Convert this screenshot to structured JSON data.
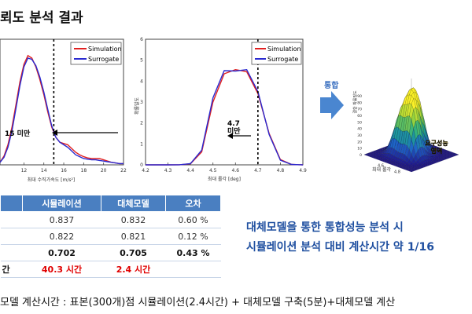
{
  "title": "뢰도 분석 결과",
  "integration_label": "통합",
  "chart_data": [
    {
      "type": "line",
      "series": [
        {
          "name": "Simulation",
          "color": "#e02020",
          "x": [
            9.6,
            10.0,
            10.4,
            10.8,
            11.2,
            11.6,
            12.0,
            12.4,
            12.8,
            13.2,
            13.6,
            14.0,
            14.4,
            14.8,
            15.2,
            15.6,
            16.0,
            16.4,
            16.8,
            17.2,
            17.6,
            18.0,
            18.4,
            18.8,
            19.2,
            19.6,
            20.0,
            20.4,
            20.8,
            21.2,
            21.6,
            22.0
          ],
          "y": [
            0.02,
            0.07,
            0.16,
            0.3,
            0.48,
            0.66,
            0.8,
            0.87,
            0.85,
            0.78,
            0.68,
            0.56,
            0.42,
            0.3,
            0.22,
            0.18,
            0.17,
            0.16,
            0.13,
            0.1,
            0.08,
            0.065,
            0.055,
            0.05,
            0.05,
            0.05,
            0.04,
            0.03,
            0.02,
            0.015,
            0.01,
            0.01
          ]
        },
        {
          "name": "Surrogate",
          "color": "#2a2ad0",
          "x": [
            9.6,
            10.0,
            10.4,
            10.8,
            11.2,
            11.6,
            12.0,
            12.4,
            12.8,
            13.2,
            13.6,
            14.0,
            14.4,
            14.8,
            15.2,
            15.6,
            16.0,
            16.4,
            16.8,
            17.2,
            17.6,
            18.0,
            18.4,
            18.8,
            19.2,
            19.6,
            20.0,
            20.4,
            20.8,
            21.2,
            21.6,
            22.0
          ],
          "y": [
            0.02,
            0.06,
            0.14,
            0.27,
            0.45,
            0.63,
            0.78,
            0.85,
            0.84,
            0.79,
            0.7,
            0.58,
            0.44,
            0.31,
            0.22,
            0.18,
            0.16,
            0.14,
            0.11,
            0.08,
            0.065,
            0.05,
            0.045,
            0.04,
            0.04,
            0.035,
            0.03,
            0.025,
            0.02,
            0.015,
            0.01,
            0.01
          ]
        }
      ],
      "xlim": [
        9.6,
        22
      ],
      "ylim": [
        0,
        1
      ],
      "xticks": [
        12,
        14,
        16,
        18,
        20,
        22
      ],
      "xlabel": "최대 수직가속도 [m/s²]",
      "threshold": 15,
      "annotation": "15 미만",
      "legend_position": "top-right",
      "grid": false
    },
    {
      "type": "line",
      "series": [
        {
          "name": "Simulation",
          "color": "#e02020",
          "x": [
            4.2,
            4.25,
            4.3,
            4.35,
            4.4,
            4.45,
            4.5,
            4.55,
            4.6,
            4.65,
            4.7,
            4.75,
            4.8,
            4.85,
            4.9
          ],
          "y": [
            0,
            0,
            0,
            0.002,
            0.05,
            0.62,
            3.0,
            4.35,
            4.55,
            4.45,
            3.4,
            1.5,
            0.25,
            0.02,
            0
          ]
        },
        {
          "name": "Surrogate",
          "color": "#2a2ad0",
          "x": [
            4.2,
            4.25,
            4.3,
            4.35,
            4.4,
            4.45,
            4.5,
            4.55,
            4.6,
            4.65,
            4.7,
            4.75,
            4.8,
            4.85,
            4.9
          ],
          "y": [
            0,
            0,
            0,
            0.002,
            0.06,
            0.7,
            3.2,
            4.5,
            4.48,
            4.55,
            3.5,
            1.45,
            0.22,
            0.02,
            0
          ]
        }
      ],
      "xlim": [
        4.2,
        4.9
      ],
      "ylim": [
        0,
        6
      ],
      "xticks": [
        4.2,
        4.3,
        4.4,
        4.5,
        4.6,
        4.7,
        4.8,
        4.9
      ],
      "yticks": [
        0,
        1,
        2,
        3,
        4,
        5,
        6
      ],
      "xlabel": "최대 롤각 [deg]",
      "ylabel": "확률밀도",
      "threshold": 4.7,
      "annotation": "4.7 미만",
      "legend_position": "top-right",
      "grid": false
    },
    {
      "type": "surface",
      "zlabel": "결합 확률밀도",
      "xlabel": "최대 롤각",
      "xticks": [
        4.6,
        4.8
      ],
      "zticks": [
        0,
        10,
        20,
        30,
        40,
        50,
        60,
        70,
        80,
        90
      ],
      "annotation_line1": "요구성능",
      "annotation_line2": "영역"
    }
  ],
  "table": {
    "headers": [
      "",
      "시뮬레이션",
      "대체모델",
      "오차"
    ],
    "rows": [
      {
        "label": "",
        "values": [
          "0.837",
          "0.832",
          "0.60 %"
        ]
      },
      {
        "label": "",
        "values": [
          "0.822",
          "0.821",
          "0.12 %"
        ]
      },
      {
        "label": "",
        "values": [
          "0.702",
          "0.705",
          "0.43 %"
        ]
      },
      {
        "label": "간",
        "values": [
          "40.3 시간",
          "2.4 시간",
          ""
        ]
      }
    ]
  },
  "summary": {
    "line1": "대체모델을 통한 통합성능 분석 시",
    "line2": "시뮬레이션 분석 대비 계산시간 약 1/16"
  },
  "footnote": "모델 계산시간 : 표본(300개)점 시뮬레이션(2.4시간) + 대체모델 구축(5분)+대체모델 계산"
}
